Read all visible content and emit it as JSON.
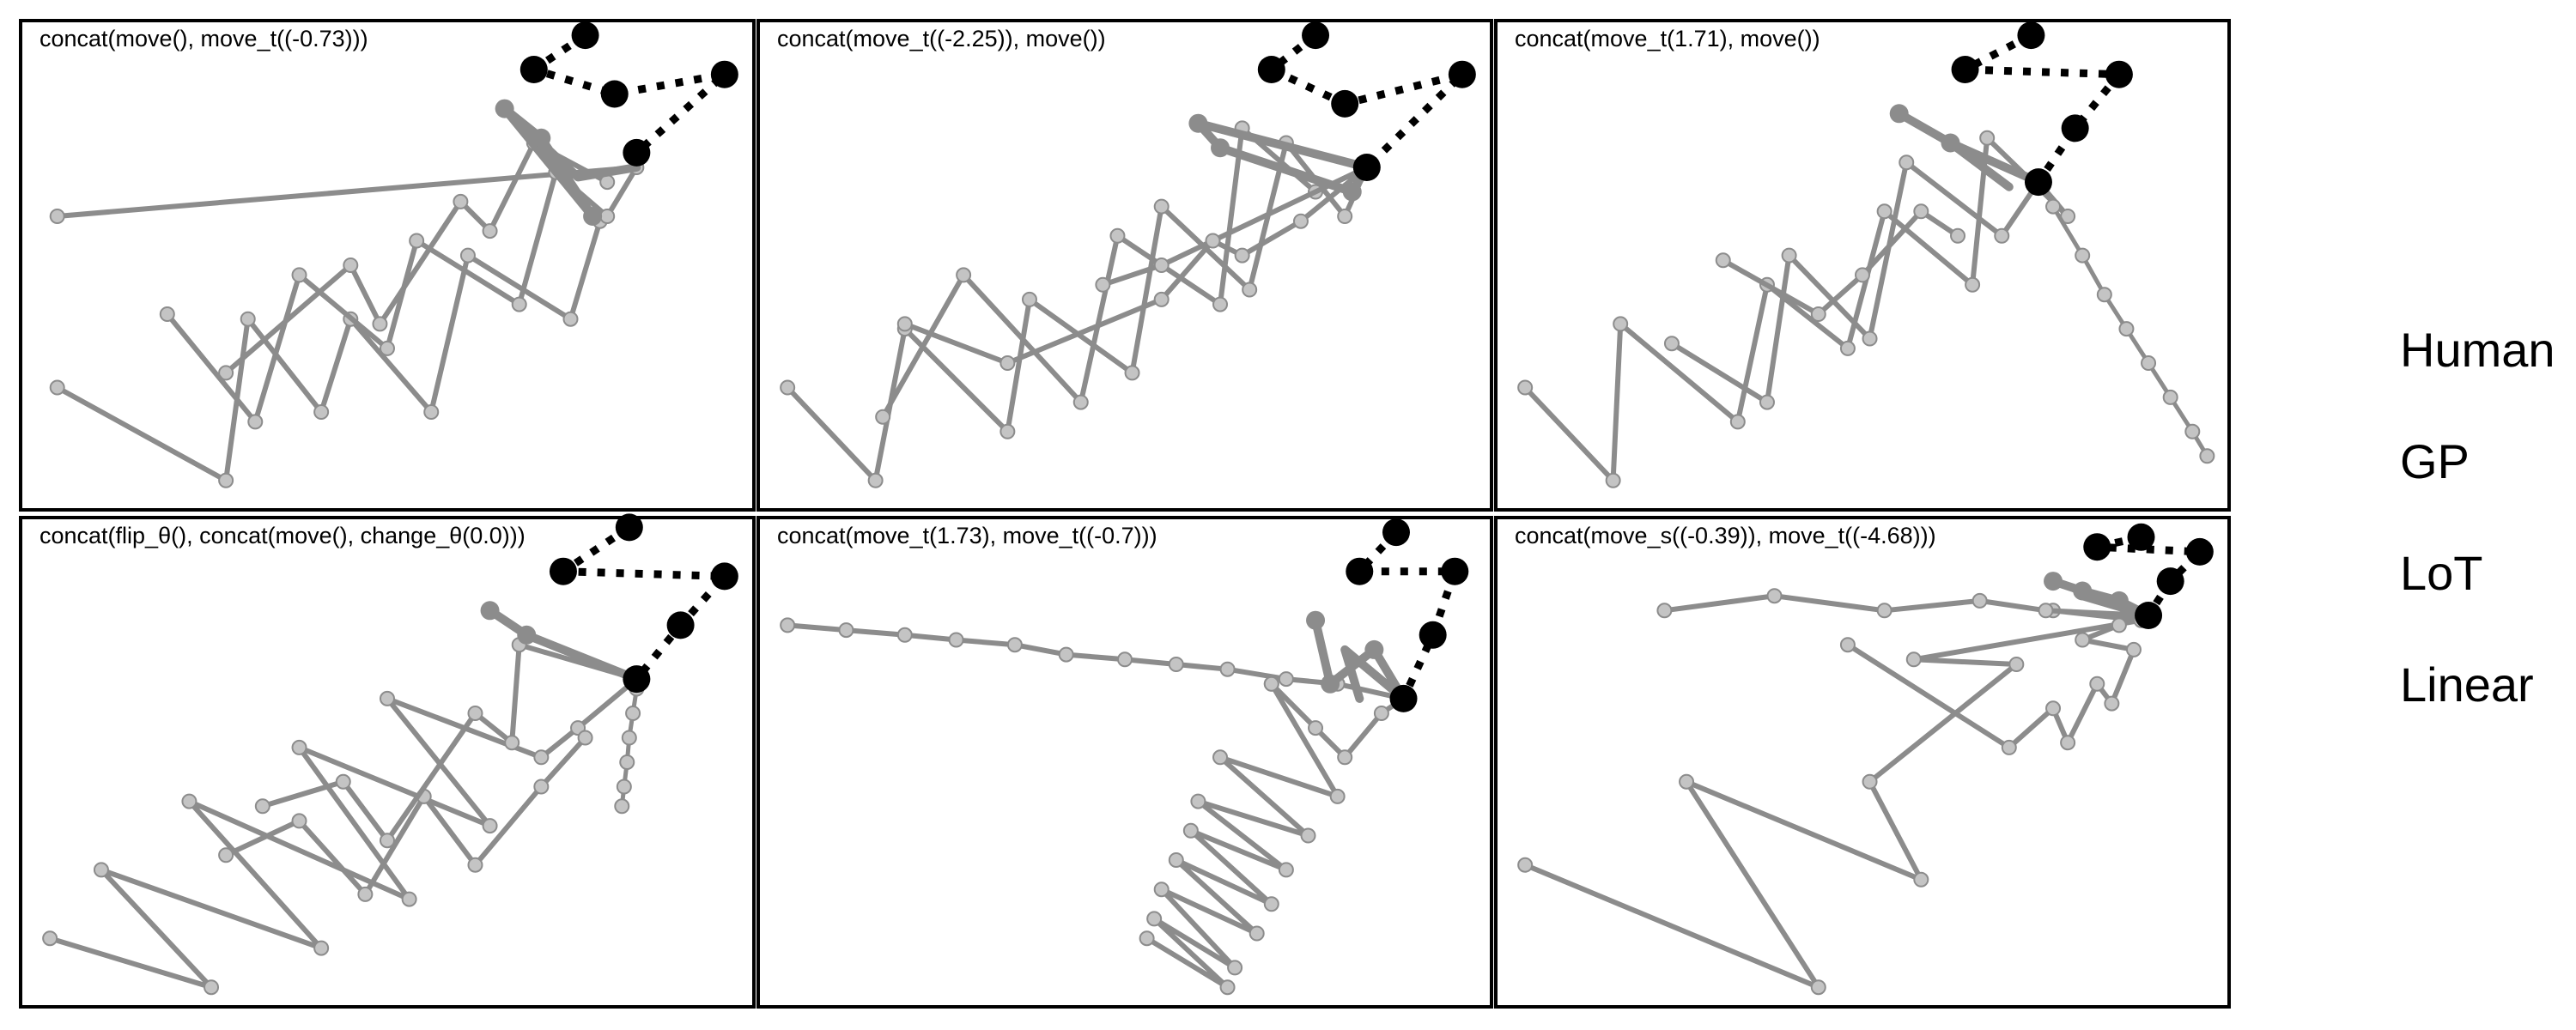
{
  "colors": {
    "trace": "#8c8c8c",
    "trace_point": "#c4c4c4",
    "target": "#000000",
    "frame": "#000000"
  },
  "legend": {
    "items": [
      "Human",
      "GP",
      "LoT",
      "Linear"
    ]
  },
  "panels": [
    {
      "title": "concat(move(), move_t((-0.73)))",
      "targets": [
        [
          0.77,
          0.97
        ],
        [
          0.7,
          0.9
        ],
        [
          0.81,
          0.85
        ],
        [
          0.96,
          0.89
        ],
        [
          0.84,
          0.73
        ]
      ],
      "trace_a": [
        [
          0.28,
          0.28
        ],
        [
          0.45,
          0.5
        ],
        [
          0.49,
          0.38
        ],
        [
          0.6,
          0.63
        ],
        [
          0.64,
          0.57
        ],
        [
          0.7,
          0.75
        ],
        [
          0.8,
          0.67
        ]
      ],
      "trace_b": [
        [
          0.05,
          0.25
        ],
        [
          0.28,
          0.06
        ],
        [
          0.31,
          0.39
        ],
        [
          0.41,
          0.2
        ],
        [
          0.45,
          0.39
        ],
        [
          0.56,
          0.2
        ],
        [
          0.61,
          0.52
        ],
        [
          0.75,
          0.39
        ],
        [
          0.79,
          0.59
        ]
      ],
      "trace_c": [
        [
          0.2,
          0.4
        ],
        [
          0.32,
          0.18
        ],
        [
          0.38,
          0.48
        ],
        [
          0.5,
          0.33
        ],
        [
          0.54,
          0.55
        ],
        [
          0.68,
          0.42
        ],
        [
          0.73,
          0.69
        ],
        [
          0.8,
          0.6
        ],
        [
          0.84,
          0.7
        ],
        [
          0.05,
          0.6
        ]
      ],
      "highlight": [
        [
          0.66,
          0.82
        ],
        [
          0.71,
          0.76
        ],
        [
          0.78,
          0.6
        ],
        [
          0.66,
          0.82
        ],
        [
          0.76,
          0.68
        ],
        [
          0.84,
          0.7
        ]
      ]
    },
    {
      "title": "concat(move_t((-2.25)), move())",
      "targets": [
        [
          0.76,
          0.97
        ],
        [
          0.7,
          0.9
        ],
        [
          0.8,
          0.83
        ],
        [
          0.96,
          0.89
        ],
        [
          0.83,
          0.7
        ]
      ],
      "trace_a": [
        [
          0.04,
          0.25
        ],
        [
          0.16,
          0.06
        ],
        [
          0.2,
          0.37
        ],
        [
          0.34,
          0.16
        ],
        [
          0.37,
          0.43
        ],
        [
          0.51,
          0.28
        ],
        [
          0.55,
          0.62
        ],
        [
          0.67,
          0.45
        ],
        [
          0.72,
          0.75
        ],
        [
          0.8,
          0.6
        ],
        [
          0.83,
          0.7
        ]
      ],
      "trace_b": [
        [
          0.17,
          0.19
        ],
        [
          0.28,
          0.48
        ],
        [
          0.44,
          0.22
        ],
        [
          0.49,
          0.56
        ],
        [
          0.63,
          0.42
        ],
        [
          0.66,
          0.78
        ],
        [
          0.76,
          0.65
        ],
        [
          0.83,
          0.7
        ]
      ],
      "trace_c": [
        [
          0.2,
          0.38
        ],
        [
          0.34,
          0.3
        ],
        [
          0.55,
          0.43
        ],
        [
          0.62,
          0.55
        ],
        [
          0.66,
          0.52
        ],
        [
          0.74,
          0.59
        ],
        [
          0.83,
          0.7
        ],
        [
          0.55,
          0.5
        ],
        [
          0.47,
          0.46
        ]
      ],
      "highlight": [
        [
          0.6,
          0.79
        ],
        [
          0.63,
          0.74
        ],
        [
          0.81,
          0.65
        ],
        [
          0.83,
          0.7
        ],
        [
          0.6,
          0.79
        ]
      ]
    },
    {
      "title": "concat(move_t(1.71), move())",
      "targets": [
        [
          0.73,
          0.97
        ],
        [
          0.64,
          0.9
        ],
        [
          0.85,
          0.89
        ],
        [
          0.79,
          0.78
        ],
        [
          0.74,
          0.67
        ]
      ],
      "trace_a": [
        [
          0.04,
          0.25
        ],
        [
          0.16,
          0.06
        ],
        [
          0.17,
          0.38
        ],
        [
          0.33,
          0.18
        ],
        [
          0.37,
          0.46
        ],
        [
          0.48,
          0.33
        ],
        [
          0.53,
          0.61
        ],
        [
          0.65,
          0.46
        ],
        [
          0.67,
          0.76
        ],
        [
          0.78,
          0.6
        ],
        [
          0.74,
          0.67
        ]
      ],
      "trace_b": [
        [
          0.24,
          0.34
        ],
        [
          0.37,
          0.22
        ],
        [
          0.4,
          0.52
        ],
        [
          0.51,
          0.35
        ],
        [
          0.56,
          0.71
        ],
        [
          0.69,
          0.56
        ],
        [
          0.74,
          0.67
        ]
      ],
      "trace_c": [
        [
          0.31,
          0.51
        ],
        [
          0.44,
          0.4
        ],
        [
          0.5,
          0.48
        ],
        [
          0.58,
          0.61
        ],
        [
          0.63,
          0.56
        ]
      ],
      "linear": [
        [
          0.76,
          0.62
        ],
        [
          0.8,
          0.52
        ],
        [
          0.83,
          0.44
        ],
        [
          0.86,
          0.37
        ],
        [
          0.89,
          0.3
        ],
        [
          0.92,
          0.23
        ],
        [
          0.95,
          0.16
        ],
        [
          0.97,
          0.11
        ]
      ],
      "highlight": [
        [
          0.55,
          0.81
        ],
        [
          0.62,
          0.75
        ],
        [
          0.74,
          0.67
        ],
        [
          0.62,
          0.75
        ],
        [
          0.7,
          0.66
        ]
      ]
    },
    {
      "title": "concat(flip_θ(), concat(move(), change_θ(0.0)))",
      "targets": [
        [
          0.83,
          0.98
        ],
        [
          0.74,
          0.89
        ],
        [
          0.96,
          0.88
        ],
        [
          0.9,
          0.78
        ],
        [
          0.84,
          0.67
        ]
      ],
      "trace_a": [
        [
          0.04,
          0.14
        ],
        [
          0.26,
          0.04
        ],
        [
          0.11,
          0.28
        ],
        [
          0.41,
          0.12
        ],
        [
          0.23,
          0.42
        ],
        [
          0.53,
          0.22
        ],
        [
          0.38,
          0.53
        ],
        [
          0.64,
          0.37
        ],
        [
          0.5,
          0.63
        ],
        [
          0.71,
          0.51
        ],
        [
          0.76,
          0.57
        ],
        [
          0.84,
          0.67
        ]
      ],
      "trace_b": [
        [
          0.28,
          0.31
        ],
        [
          0.38,
          0.38
        ],
        [
          0.47,
          0.23
        ],
        [
          0.55,
          0.43
        ],
        [
          0.62,
          0.29
        ],
        [
          0.71,
          0.45
        ],
        [
          0.77,
          0.55
        ]
      ],
      "trace_c": [
        [
          0.33,
          0.41
        ],
        [
          0.44,
          0.46
        ],
        [
          0.5,
          0.34
        ],
        [
          0.62,
          0.6
        ],
        [
          0.67,
          0.54
        ],
        [
          0.68,
          0.74
        ],
        [
          0.84,
          0.67
        ]
      ],
      "linear": [
        [
          0.84,
          0.65
        ],
        [
          0.835,
          0.6
        ],
        [
          0.83,
          0.55
        ],
        [
          0.827,
          0.5
        ],
        [
          0.823,
          0.45
        ],
        [
          0.82,
          0.41
        ]
      ],
      "highlight": [
        [
          0.64,
          0.81
        ],
        [
          0.69,
          0.76
        ],
        [
          0.84,
          0.67
        ]
      ]
    },
    {
      "title": "concat(move_t(1.73), move_t((-0.7)))",
      "targets": [
        [
          0.87,
          0.97
        ],
        [
          0.82,
          0.89
        ],
        [
          0.95,
          0.89
        ],
        [
          0.92,
          0.76
        ],
        [
          0.88,
          0.63
        ]
      ],
      "trace_a": [
        [
          0.04,
          0.78
        ],
        [
          0.12,
          0.77
        ],
        [
          0.2,
          0.76
        ],
        [
          0.27,
          0.75
        ],
        [
          0.35,
          0.74
        ],
        [
          0.42,
          0.72
        ],
        [
          0.5,
          0.71
        ],
        [
          0.57,
          0.7
        ],
        [
          0.64,
          0.69
        ],
        [
          0.72,
          0.67
        ],
        [
          0.79,
          0.66
        ],
        [
          0.88,
          0.63
        ]
      ],
      "trace_b": [
        [
          0.53,
          0.14
        ],
        [
          0.64,
          0.04
        ],
        [
          0.54,
          0.18
        ],
        [
          0.65,
          0.08
        ],
        [
          0.55,
          0.24
        ],
        [
          0.68,
          0.15
        ],
        [
          0.57,
          0.3
        ],
        [
          0.7,
          0.21
        ],
        [
          0.59,
          0.36
        ],
        [
          0.72,
          0.28
        ],
        [
          0.6,
          0.42
        ],
        [
          0.75,
          0.35
        ],
        [
          0.63,
          0.51
        ],
        [
          0.79,
          0.43
        ],
        [
          0.7,
          0.66
        ]
      ],
      "trace_c": [
        [
          0.7,
          0.66
        ],
        [
          0.76,
          0.57
        ],
        [
          0.8,
          0.51
        ],
        [
          0.85,
          0.6
        ],
        [
          0.88,
          0.63
        ]
      ],
      "highlight": [
        [
          0.76,
          0.79
        ],
        [
          0.78,
          0.66
        ],
        [
          0.84,
          0.73
        ],
        [
          0.88,
          0.63
        ],
        [
          0.8,
          0.73
        ],
        [
          0.82,
          0.63
        ]
      ]
    },
    {
      "title": "concat(move_s((-0.39)), move_t((-4.68)))",
      "targets": [
        [
          0.88,
          0.96
        ],
        [
          0.82,
          0.94
        ],
        [
          0.96,
          0.93
        ],
        [
          0.92,
          0.87
        ],
        [
          0.89,
          0.8
        ]
      ],
      "trace_a": [
        [
          0.04,
          0.29
        ],
        [
          0.44,
          0.04
        ],
        [
          0.26,
          0.46
        ],
        [
          0.58,
          0.26
        ],
        [
          0.51,
          0.46
        ],
        [
          0.71,
          0.7
        ],
        [
          0.57,
          0.71
        ],
        [
          0.88,
          0.79
        ],
        [
          0.76,
          0.81
        ]
      ],
      "trace_b": [
        [
          0.23,
          0.81
        ],
        [
          0.38,
          0.84
        ],
        [
          0.53,
          0.81
        ],
        [
          0.66,
          0.83
        ],
        [
          0.75,
          0.81
        ],
        [
          0.89,
          0.8
        ]
      ],
      "trace_c": [
        [
          0.48,
          0.74
        ],
        [
          0.7,
          0.53
        ],
        [
          0.76,
          0.61
        ],
        [
          0.78,
          0.54
        ],
        [
          0.82,
          0.66
        ],
        [
          0.84,
          0.62
        ],
        [
          0.87,
          0.73
        ],
        [
          0.8,
          0.75
        ],
        [
          0.85,
          0.78
        ]
      ],
      "highlight": [
        [
          0.76,
          0.87
        ],
        [
          0.8,
          0.85
        ],
        [
          0.85,
          0.83
        ],
        [
          0.89,
          0.8
        ],
        [
          0.8,
          0.84
        ]
      ]
    }
  ]
}
